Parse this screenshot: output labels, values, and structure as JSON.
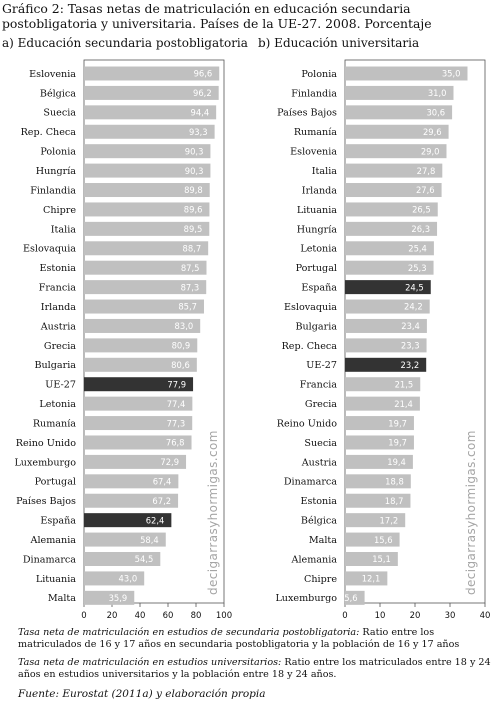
{
  "title": "Gráfico 2: Tasas netas de matriculación en educación secundaria postobligatoria y universitaria. Países de la UE-27. 2008. Porcentaje",
  "watermark": "decigarrasyhormigas.com",
  "notes": {
    "secundaria_label": "Tasa neta de matriculación en estudios de secundaria postobligatoria:",
    "secundaria_text": " Ratio entre los matriculados de 16 y 17 años en secundaria postobligatoria y la población de 16 y 17 años",
    "universitaria_label": "Tasa neta de matriculación en estudios universitarios:",
    "universitaria_text": " Ratio entre los matriculados entre 18 y 24 años en estudios universitarios y la población entre 18 y 24 años."
  },
  "source": "Fuente: Eurostat (2011a) y elaboración propia",
  "colors": {
    "bar": "#c0c0c0",
    "highlight": "#333333",
    "panel_bg": "#ffffff",
    "grid": "#d8d8d8"
  },
  "chart_data": [
    {
      "type": "bar",
      "orientation": "horizontal",
      "title": "a) Educación secundaria postobligatoria",
      "xlim": [
        0,
        100
      ],
      "xticks": [
        0,
        20,
        40,
        60,
        80,
        100
      ],
      "highlight": [
        "UE-27",
        "España"
      ],
      "categories": [
        "Eslovenia",
        "Bélgica",
        "Suecia",
        "Rep. Checa",
        "Polonia",
        "Hungría",
        "Finlandia",
        "Chipre",
        "Italia",
        "Eslovaquia",
        "Estonia",
        "Francia",
        "Irlanda",
        "Austria",
        "Grecia",
        "Bulgaria",
        "UE-27",
        "Letonia",
        "Rumanía",
        "Reino Unido",
        "Luxemburgo",
        "Portugal",
        "Países Bajos",
        "España",
        "Alemania",
        "Dinamarca",
        "Lituania",
        "Malta"
      ],
      "values": [
        96.6,
        96.2,
        94.4,
        93.3,
        90.3,
        90.3,
        89.8,
        89.6,
        89.5,
        88.7,
        87.5,
        87.3,
        85.7,
        83.0,
        80.9,
        80.6,
        77.9,
        77.4,
        77.3,
        76.8,
        72.9,
        67.4,
        67.2,
        62.4,
        58.4,
        54.5,
        43.0,
        35.9
      ],
      "labels": [
        "96,6",
        "96,2",
        "94,4",
        "93,3",
        "90,3",
        "90,3",
        "89,8",
        "89,6",
        "89,5",
        "88,7",
        "87,5",
        "87,3",
        "85,7",
        "83,0",
        "80,9",
        "80,6",
        "77,9",
        "77,4",
        "77,3",
        "76,8",
        "72,9",
        "67,4",
        "67,2",
        "62,4",
        "58,4",
        "54,5",
        "43,0",
        "35,9"
      ]
    },
    {
      "type": "bar",
      "orientation": "horizontal",
      "title": "b) Educación universitaria",
      "xlim": [
        0,
        40
      ],
      "xticks": [
        0,
        10,
        20,
        30,
        40
      ],
      "highlight": [
        "España",
        "UE-27"
      ],
      "categories": [
        "Polonia",
        "Finlandia",
        "Países Bajos",
        "Rumanía",
        "Eslovenia",
        "Italia",
        "Irlanda",
        "Lituania",
        "Hungría",
        "Letonia",
        "Portugal",
        "España",
        "Eslovaquia",
        "Bulgaria",
        "Rep. Checa",
        "UE-27",
        "Francia",
        "Grecia",
        "Reino Unido",
        "Suecia",
        "Austria",
        "Dinamarca",
        "Estonia",
        "Bélgica",
        "Malta",
        "Alemania",
        "Chipre",
        "Luxemburgo"
      ],
      "values": [
        35.0,
        31.0,
        30.6,
        29.6,
        29.0,
        27.8,
        27.6,
        26.5,
        26.3,
        25.4,
        25.3,
        24.5,
        24.2,
        23.4,
        23.3,
        23.2,
        21.5,
        21.4,
        19.7,
        19.7,
        19.4,
        18.8,
        18.7,
        17.2,
        15.6,
        15.1,
        12.1,
        5.6
      ],
      "labels": [
        "35,0",
        "31,0",
        "30,6",
        "29,6",
        "29,0",
        "27,8",
        "27,6",
        "26,5",
        "26,3",
        "25,4",
        "25,3",
        "24,5",
        "24,2",
        "23,4",
        "23,3",
        "23,2",
        "21,5",
        "21,4",
        "19,7",
        "19,7",
        "19,4",
        "18,8",
        "18,7",
        "17,2",
        "15,6",
        "15,1",
        "12,1",
        "5,6"
      ]
    }
  ]
}
